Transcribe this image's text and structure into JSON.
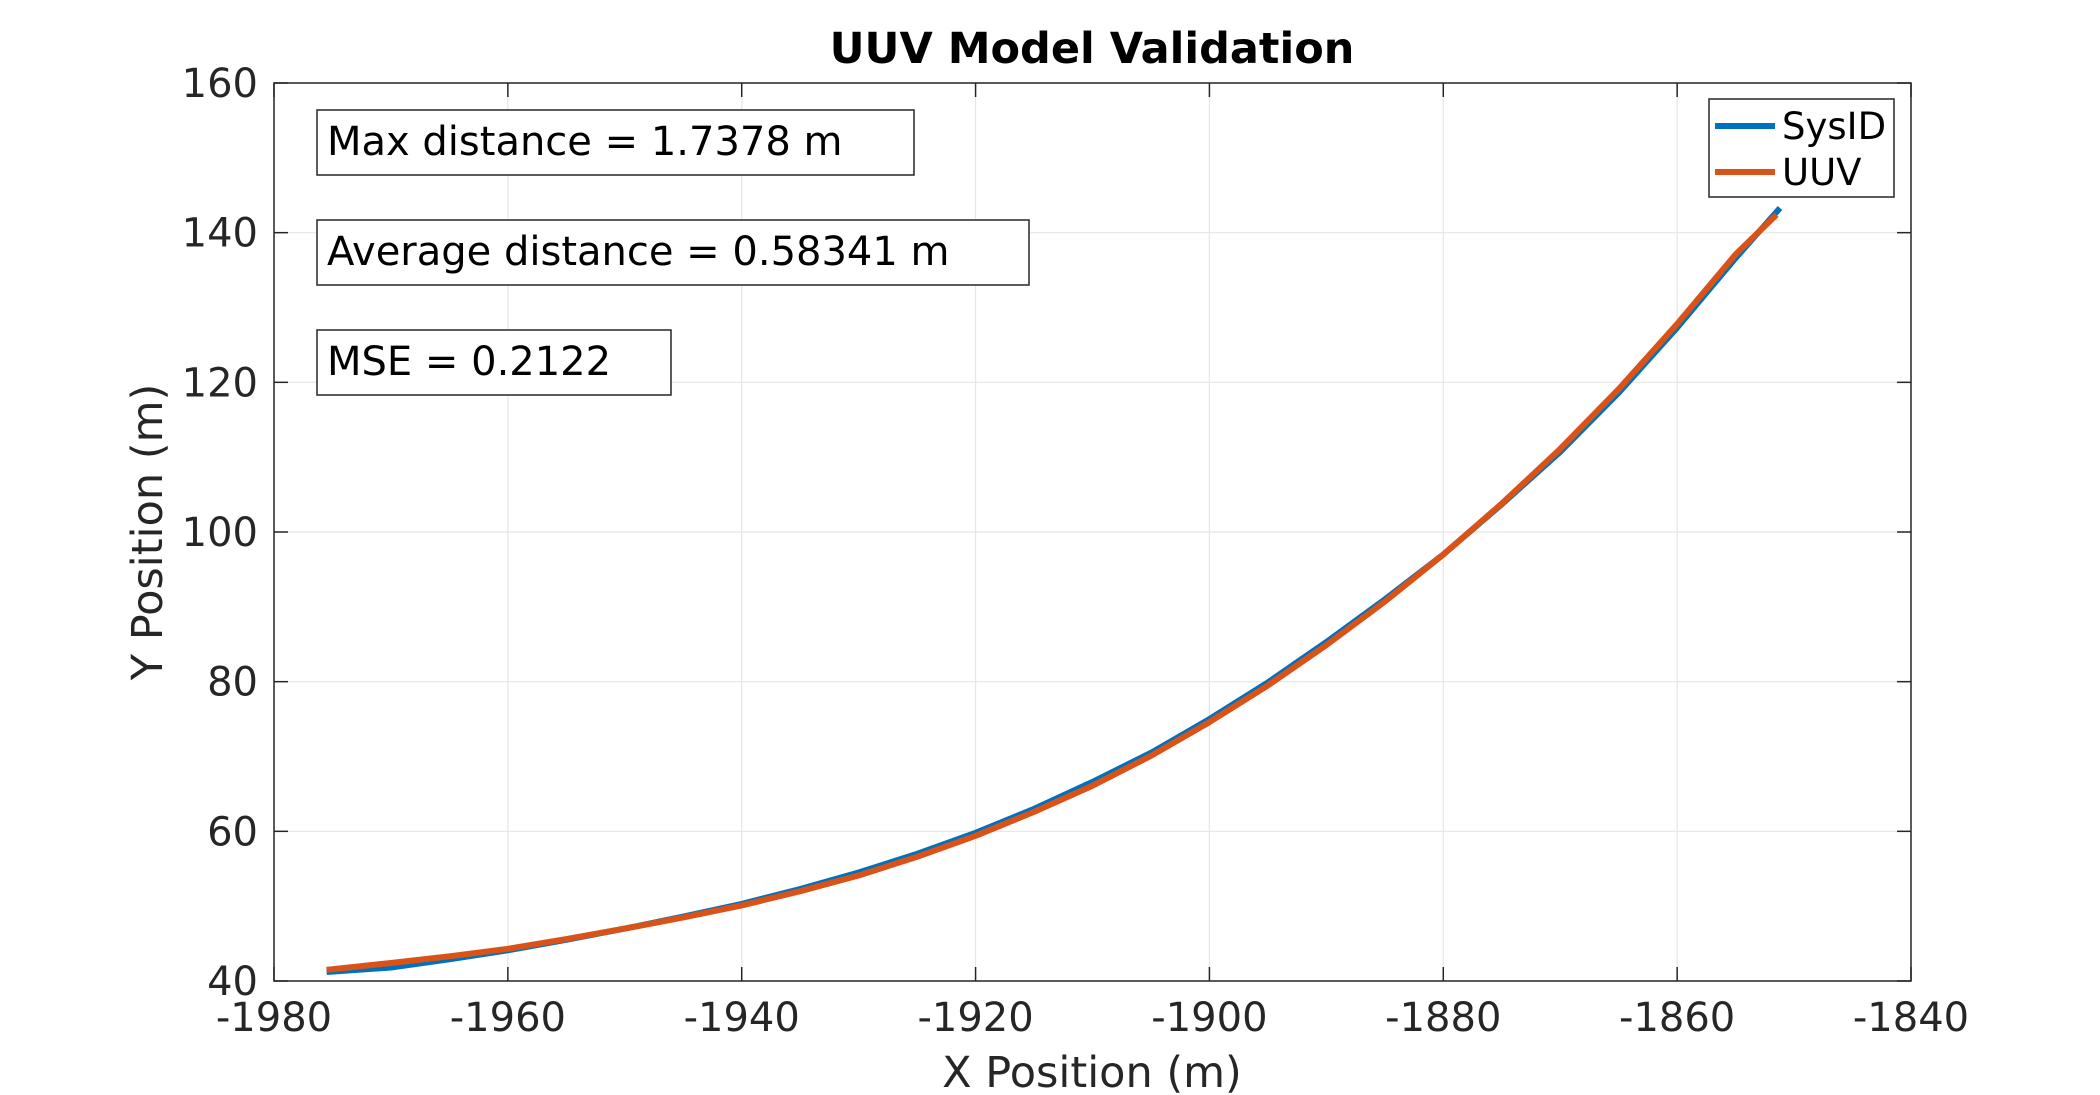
{
  "chart_data": {
    "type": "line",
    "title": "UUV Model Validation",
    "xlabel": "X Position (m)",
    "ylabel": "Y Position (m)",
    "xlim": [
      -1980,
      -1840
    ],
    "ylim": [
      40,
      160
    ],
    "xticks": [
      -1980,
      -1960,
      -1940,
      -1920,
      -1900,
      -1880,
      -1860,
      -1840
    ],
    "yticks": [
      40,
      60,
      80,
      100,
      120,
      140,
      160
    ],
    "grid": true,
    "legend_position": "top-right",
    "series": [
      {
        "name": "SysID",
        "color": "#0072BD",
        "x": [
          -1975.5,
          -1970,
          -1965,
          -1960,
          -1955,
          -1950,
          -1945,
          -1940,
          -1935,
          -1930,
          -1925,
          -1920,
          -1915,
          -1910,
          -1905,
          -1900,
          -1895,
          -1890,
          -1885,
          -1880,
          -1875,
          -1870,
          -1865,
          -1860,
          -1855,
          -1851.2
        ],
        "y": [
          41.2,
          41.8,
          42.9,
          44.1,
          45.5,
          47.0,
          48.6,
          50.3,
          52.3,
          54.5,
          57.0,
          59.8,
          63.0,
          66.6,
          70.5,
          75.0,
          79.9,
          85.3,
          91.0,
          97.0,
          103.7,
          110.7,
          118.6,
          127.3,
          136.6,
          143.3
        ]
      },
      {
        "name": "UUV",
        "color": "#D95319",
        "x": [
          -1975.5,
          -1970,
          -1965,
          -1960,
          -1955,
          -1950,
          -1945,
          -1940,
          -1935,
          -1930,
          -1925,
          -1920,
          -1915,
          -1910,
          -1905,
          -1900,
          -1895,
          -1890,
          -1885,
          -1880,
          -1875,
          -1870,
          -1865,
          -1860,
          -1855,
          -1851.5
        ],
        "y": [
          41.5,
          42.4,
          43.3,
          44.3,
          45.6,
          47.0,
          48.5,
          50.1,
          52.0,
          54.1,
          56.6,
          59.4,
          62.6,
          66.1,
          70.1,
          74.6,
          79.5,
          84.9,
          90.7,
          97.0,
          103.8,
          111.1,
          119.1,
          127.8,
          137.1,
          142.4
        ]
      }
    ],
    "annotations": [
      "Max distance = 1.7378 m",
      "Average distance = 0.58341 m",
      "MSE = 0.2122"
    ]
  }
}
